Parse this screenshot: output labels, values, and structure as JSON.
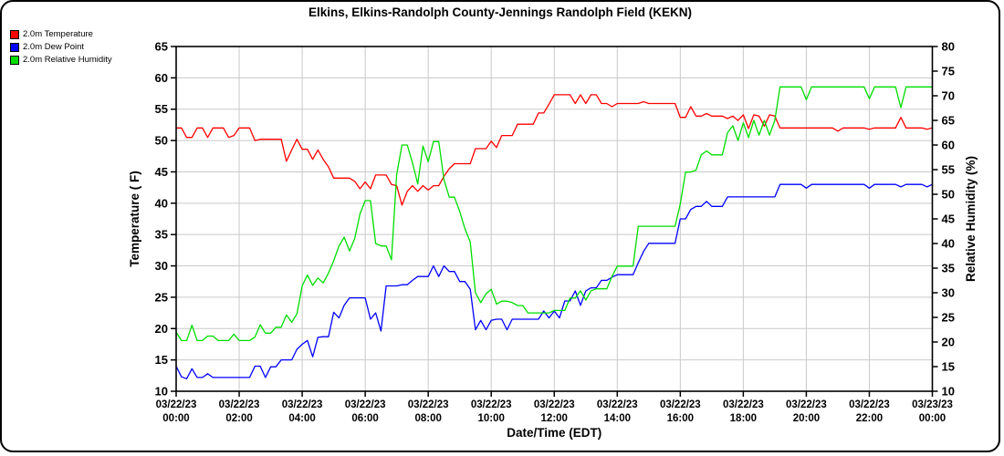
{
  "title": "Elkins, Elkins-Randolph County-Jennings Randolph Field (KEKN)",
  "legend": [
    {
      "label": "2.0m Temperature",
      "color": "#ff0000"
    },
    {
      "label": "2.0m Dew Point",
      "color": "#0000ff"
    },
    {
      "label": "2.0m Relative Humidity",
      "color": "#00dd00"
    }
  ],
  "chart_data": {
    "type": "line",
    "title": "Elkins, Elkins-Randolph County-Jennings Randolph Field (KEKN)",
    "xlabel": "Date/Time (EDT)",
    "y_left": {
      "label": "Temperature ( F)",
      "min": 10,
      "max": 65,
      "tick_step": 5
    },
    "y_right": {
      "label": "Relative Humidity (%)",
      "min": 10,
      "max": 80,
      "tick_step": 5
    },
    "grid": true,
    "legend_position": "top-left",
    "x_range_hours": [
      0,
      24
    ],
    "x_tick_interval_hours": 2,
    "x_ticks": [
      {
        "date": "03/22/23",
        "time": "00:00"
      },
      {
        "date": "03/22/23",
        "time": "02:00"
      },
      {
        "date": "03/22/23",
        "time": "04:00"
      },
      {
        "date": "03/22/23",
        "time": "06:00"
      },
      {
        "date": "03/22/23",
        "time": "08:00"
      },
      {
        "date": "03/22/23",
        "time": "10:00"
      },
      {
        "date": "03/22/23",
        "time": "12:00"
      },
      {
        "date": "03/22/23",
        "time": "14:00"
      },
      {
        "date": "03/22/23",
        "time": "16:00"
      },
      {
        "date": "03/22/23",
        "time": "18:00"
      },
      {
        "date": "03/22/23",
        "time": "20:00"
      },
      {
        "date": "03/22/23",
        "time": "22:00"
      },
      {
        "date": "03/23/23",
        "time": "00:00"
      }
    ],
    "sample_interval_minutes": 10,
    "series": [
      {
        "name": "2.0m Temperature",
        "axis": "left",
        "unit": "F",
        "color": "#ff0000",
        "values": [
          52,
          52,
          50.5,
          50.5,
          52,
          52,
          50.5,
          52,
          52,
          52,
          50.5,
          50.8,
          52,
          52,
          52,
          50,
          50.2,
          50.2,
          50.2,
          50.2,
          50.2,
          46.7,
          48.5,
          50.2,
          48.6,
          48.6,
          47,
          48.5,
          47,
          45.8,
          44,
          44,
          44,
          44,
          43.5,
          42.3,
          43.4,
          42.3,
          44.5,
          44.5,
          44.5,
          43,
          42.8,
          39.7,
          41.9,
          42.8,
          41.9,
          42.8,
          42.1,
          42.8,
          42.8,
          44.3,
          45.5,
          46.3,
          46.3,
          46.3,
          46.3,
          48.7,
          48.7,
          48.7,
          49.9,
          48.9,
          50.8,
          50.8,
          50.8,
          52.6,
          52.6,
          52.6,
          52.6,
          54.4,
          54.4,
          55.8,
          57.3,
          57.3,
          57.3,
          57.3,
          55.9,
          57.3,
          55.9,
          57.3,
          57.3,
          55.9,
          55.9,
          55.4,
          55.9,
          55.9,
          55.9,
          55.9,
          55.9,
          56.2,
          55.9,
          55.9,
          55.9,
          55.9,
          55.9,
          55.9,
          53.7,
          53.7,
          55.4,
          53.9,
          53.9,
          54.3,
          53.9,
          53.9,
          53.9,
          53.5,
          53.9,
          53.2,
          54.1,
          51.9,
          54.1,
          53.9,
          52.3,
          54.1,
          53.9,
          52,
          52,
          52,
          52,
          52,
          52,
          52,
          52,
          52,
          52,
          52,
          51.5,
          52,
          52,
          52,
          52,
          52,
          51.8,
          52,
          52,
          52,
          52,
          52,
          53.7,
          52,
          52,
          52,
          52,
          51.8,
          52
        ]
      },
      {
        "name": "2.0m Dew Point",
        "axis": "left",
        "unit": "F",
        "color": "#0000ff",
        "values": [
          14,
          12.3,
          12,
          13.6,
          12.2,
          12.2,
          12.8,
          12.2,
          12.2,
          12.2,
          12.2,
          12.2,
          12.2,
          12.2,
          12.2,
          14,
          14,
          12.2,
          13.9,
          13.9,
          15,
          15,
          15,
          16.7,
          17.5,
          18.1,
          15.5,
          18.6,
          18.7,
          18.7,
          22.6,
          21.7,
          23.7,
          24.9,
          24.9,
          24.9,
          24.9,
          21.5,
          22.5,
          19.6,
          26.8,
          26.8,
          26.8,
          27,
          27,
          27.7,
          28.3,
          28.3,
          28.3,
          30,
          28.3,
          30,
          29.1,
          29.1,
          27.5,
          27.5,
          26.3,
          19.8,
          21.3,
          19.8,
          21.3,
          21.5,
          21.5,
          19.8,
          21.5,
          21.5,
          21.5,
          21.5,
          21.5,
          21.5,
          22.8,
          21.7,
          22.8,
          21.7,
          24.4,
          24.4,
          26,
          23.7,
          26,
          26.5,
          26.5,
          27.7,
          27.7,
          28.2,
          28.6,
          28.6,
          28.6,
          28.6,
          30.5,
          32.3,
          33.6,
          33.6,
          33.6,
          33.6,
          33.6,
          33.6,
          37.5,
          37.5,
          39,
          39.5,
          39.5,
          40.3,
          39.5,
          39.5,
          39.5,
          41,
          41,
          41,
          41,
          41,
          41,
          41,
          41,
          41,
          41,
          43,
          43,
          43,
          43,
          43,
          42.4,
          43,
          43,
          43,
          43,
          43,
          43,
          43,
          43,
          43,
          43,
          43,
          42.4,
          43,
          43,
          43,
          43,
          43,
          42.6,
          43,
          43,
          43,
          43,
          42.6,
          43
        ]
      },
      {
        "name": "2.0m Relative Humidity",
        "axis": "right",
        "unit": "%",
        "color": "#00dd00",
        "values": [
          22,
          20.3,
          20.3,
          23.4,
          20.3,
          20.3,
          21.2,
          21.2,
          20.3,
          20.3,
          20.3,
          21.6,
          20.3,
          20.3,
          20.3,
          21,
          23.5,
          21.8,
          21.8,
          23,
          23,
          25.5,
          24,
          25.7,
          31.4,
          33.6,
          31.5,
          33,
          32,
          34,
          36.5,
          39.5,
          41.3,
          38.5,
          41,
          46,
          48.7,
          48.7,
          40,
          39.5,
          39.5,
          36.7,
          54,
          60,
          60,
          56.4,
          52.1,
          59.8,
          56.6,
          60.7,
          60.7,
          53,
          49.4,
          49.4,
          46.5,
          43,
          40.3,
          30,
          28,
          29.8,
          30.7,
          27.7,
          28.3,
          28.3,
          28,
          27.4,
          27.4,
          25.9,
          25.9,
          25.9,
          25.9,
          25.9,
          26.4,
          26.4,
          26.4,
          28.9,
          28.9,
          30.4,
          28.5,
          30.4,
          30.8,
          30.8,
          30.8,
          33.3,
          35.4,
          35.4,
          35.4,
          35.4,
          43.5,
          43.5,
          43.5,
          43.5,
          43.5,
          43.5,
          43.5,
          43.5,
          48,
          54.5,
          54.5,
          54.9,
          58,
          58.8,
          58,
          58,
          58,
          62.5,
          63.9,
          60.9,
          64.5,
          61.5,
          65,
          62,
          65,
          62,
          65,
          71.8,
          71.8,
          71.8,
          71.8,
          71.8,
          69.2,
          71.8,
          71.8,
          71.8,
          71.8,
          71.8,
          71.8,
          71.8,
          71.8,
          71.8,
          71.8,
          71.8,
          69.4,
          71.8,
          71.8,
          71.8,
          71.8,
          71.8,
          67.6,
          71.8,
          71.8,
          71.8,
          71.8,
          71.8,
          71.8
        ]
      }
    ]
  },
  "colors": {
    "grid": "#c9c9c9",
    "axis": "#000000",
    "background": "#ffffff"
  }
}
